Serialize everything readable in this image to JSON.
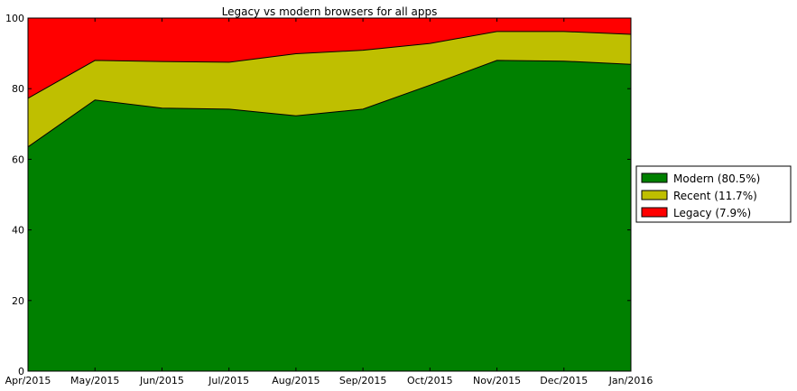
{
  "chart_data": {
    "type": "area",
    "stacked": true,
    "title": "Legacy vs modern browsers for all apps",
    "xlabel": "",
    "ylabel": "",
    "categories": [
      "Apr/2015",
      "May/2015",
      "Jun/2015",
      "Jul/2015",
      "Aug/2015",
      "Sep/2015",
      "Oct/2015",
      "Nov/2015",
      "Dec/2015",
      "Jan/2016"
    ],
    "ylim": [
      0,
      100
    ],
    "yticks": [
      0,
      20,
      40,
      60,
      80,
      100
    ],
    "grid": false,
    "legend_position": "right",
    "series": [
      {
        "name": "Modern",
        "legend_label": "Modern  (80.5%)",
        "color": "#008000",
        "values": [
          63.5,
          76.8,
          74.5,
          74.2,
          72.3,
          74.2,
          81.0,
          88.0,
          87.8,
          86.9
        ]
      },
      {
        "name": "Recent",
        "legend_label": "Recent  (11.7%)",
        "color": "#bfbf00",
        "values": [
          13.8,
          11.2,
          13.2,
          13.3,
          17.6,
          16.7,
          11.8,
          8.2,
          8.4,
          8.5
        ]
      },
      {
        "name": "Legacy",
        "legend_label": "Legacy  (7.9%)",
        "color": "#ff0000",
        "values": [
          22.7,
          12.0,
          12.3,
          12.5,
          10.1,
          9.1,
          7.2,
          3.8,
          3.8,
          4.6
        ]
      }
    ]
  }
}
